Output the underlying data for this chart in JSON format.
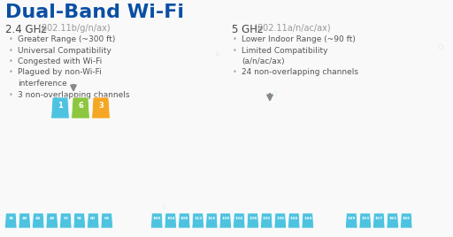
{
  "title": "Dual-Band Wi-Fi",
  "title_color": "#0a4fa3",
  "bg_color": "#f9f9f9",
  "left_heading": "2.4 GHz",
  "left_subheading": " (802.11b/g/n/ax)",
  "right_heading": "5 GHz",
  "right_subheading": " (802.11a/n/ac/ax)",
  "left_bullets": [
    "Greater Range (~300 ft)",
    "Universal Compatibility",
    "Congested with Wi-Fi",
    "Plagued by non-Wi-Fi",
    "  interference",
    "3 non-overlapping channels"
  ],
  "right_bullets": [
    "Lower Indoor Range (~90 ft)",
    "Limited Compatibility",
    "  (a/n/ac/ax)",
    "24 non-overlapping channels"
  ],
  "channel_color": "#4ec3e0",
  "ch1_color": "#4ec3e0",
  "ch2_color": "#8dc63f",
  "ch3_color": "#f5a623",
  "heading_color": "#444444",
  "subheading_color": "#999999",
  "bullet_color": "#555555",
  "arrow_color": "#888888",
  "watermark_color": "#d8eef5",
  "left_ch_labels": [
    "36",
    "40",
    "44",
    "48",
    "52",
    "56",
    "60",
    "64"
  ],
  "mid_ch_labels": [
    "100",
    "104",
    "108",
    "112",
    "116",
    "120",
    "124",
    "128",
    "132",
    "136",
    "140",
    "144"
  ],
  "right_ch_labels": [
    "149",
    "153",
    "157",
    "161",
    "165"
  ],
  "big_ch_labels": [
    "1",
    "6",
    "3"
  ]
}
